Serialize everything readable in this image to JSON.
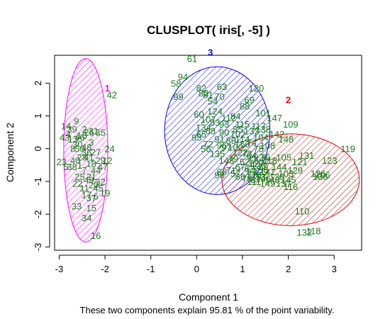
{
  "chart_data": {
    "type": "scatter",
    "title": "CLUSPLOT( iris[, -5] )",
    "xlabel": "Component 1",
    "ylabel": "Component 2",
    "subtitle": "These two components explain 95.81 % of the point variability.",
    "xlim": [
      -3.1,
      3.6
    ],
    "ylim": [
      -3.1,
      2.85
    ],
    "xticks": [
      -3,
      -2,
      -1,
      0,
      1,
      2,
      3
    ],
    "yticks": [
      -3,
      -2,
      -1,
      0,
      1,
      2
    ],
    "point_color": "#1a7a1a",
    "clusters": [
      {
        "label": "1",
        "color": "#ff00ff",
        "center": [
          -2.42,
          -0.05
        ],
        "semi_axes": [
          0.48,
          2.8
        ],
        "label_pos": [
          -1.95,
          1.85
        ],
        "points": [
          {
            "label": "42",
            "x": -1.85,
            "y": 1.65
          },
          {
            "label": "14",
            "x": -2.85,
            "y": 0.7
          },
          {
            "label": "9",
            "x": -2.62,
            "y": 0.85
          },
          {
            "label": "39",
            "x": -2.72,
            "y": 0.6
          },
          {
            "label": "43",
            "x": -2.88,
            "y": 0.35
          },
          {
            "label": "13",
            "x": -2.7,
            "y": 0.3
          },
          {
            "label": "46",
            "x": -2.55,
            "y": 0.35
          },
          {
            "label": "26",
            "x": -2.35,
            "y": 0.5
          },
          {
            "label": "2",
            "x": -2.45,
            "y": 0.6
          },
          {
            "label": "4",
            "x": -2.8,
            "y": 0.45
          },
          {
            "label": "31",
            "x": -2.25,
            "y": 0.55
          },
          {
            "label": "35",
            "x": -2.1,
            "y": 0.5
          },
          {
            "label": "10",
            "x": -2.5,
            "y": 0.4
          },
          {
            "label": "30",
            "x": -2.6,
            "y": 0.15
          },
          {
            "label": "3",
            "x": -2.3,
            "y": 0.2
          },
          {
            "label": "48",
            "x": -2.4,
            "y": 0.05
          },
          {
            "label": "50",
            "x": -2.55,
            "y": 0.0
          },
          {
            "label": "8",
            "x": -2.7,
            "y": 0.0
          },
          {
            "label": "36",
            "x": -2.4,
            "y": -0.1
          },
          {
            "label": "24",
            "x": -1.9,
            "y": 0.0
          },
          {
            "label": "27",
            "x": -2.2,
            "y": -0.1
          },
          {
            "label": "28",
            "x": -2.5,
            "y": -0.25
          },
          {
            "label": "40",
            "x": -2.65,
            "y": -0.35
          },
          {
            "label": "41",
            "x": -2.35,
            "y": -0.25
          },
          {
            "label": "1",
            "x": -2.55,
            "y": -0.5
          },
          {
            "label": "18",
            "x": -2.3,
            "y": -0.45
          },
          {
            "label": "29",
            "x": -2.1,
            "y": -0.35
          },
          {
            "label": "12",
            "x": -1.95,
            "y": -0.35
          },
          {
            "label": "23",
            "x": -2.95,
            "y": -0.4
          },
          {
            "label": "38",
            "x": -2.72,
            "y": -0.55
          },
          {
            "label": "5",
            "x": -2.85,
            "y": -0.55
          },
          {
            "label": "7",
            "x": -2.45,
            "y": -0.65
          },
          {
            "label": "44",
            "x": -2.2,
            "y": -0.65
          },
          {
            "label": "21",
            "x": -2.3,
            "y": -0.85
          },
          {
            "label": "22",
            "x": -2.6,
            "y": -1.05
          },
          {
            "label": "49",
            "x": -2.35,
            "y": -0.95
          },
          {
            "label": "11",
            "x": -2.45,
            "y": -1.2
          },
          {
            "label": "20",
            "x": -2.25,
            "y": -1.1
          },
          {
            "label": "45",
            "x": -2.15,
            "y": -1.2
          },
          {
            "label": "47",
            "x": -2.05,
            "y": -0.55
          },
          {
            "label": "17",
            "x": -2.4,
            "y": -1.4
          },
          {
            "label": "19",
            "x": -2.0,
            "y": -1.35
          },
          {
            "label": "37",
            "x": -2.3,
            "y": -1.5
          },
          {
            "label": "33",
            "x": -2.62,
            "y": -1.75
          },
          {
            "label": "15",
            "x": -2.3,
            "y": -1.8
          },
          {
            "label": "6",
            "x": -2.2,
            "y": -1.45
          },
          {
            "label": "32",
            "x": -2.1,
            "y": -1.0
          },
          {
            "label": "25",
            "x": -2.55,
            "y": -0.85
          },
          {
            "label": "34",
            "x": -2.4,
            "y": -2.1
          },
          {
            "label": "16",
            "x": -2.2,
            "y": -2.65
          }
        ]
      },
      {
        "label": "2",
        "color": "#dd0000",
        "center": [
          2.05,
          -0.95
        ],
        "semi_axes": [
          1.5,
          1.4
        ],
        "label_pos": [
          2.0,
          1.5
        ],
        "points": [
          {
            "label": "101",
            "x": 1.45,
            "y": 1.1
          },
          {
            "label": "147",
            "x": 1.7,
            "y": 0.95
          },
          {
            "label": "109",
            "x": 2.05,
            "y": 0.75
          },
          {
            "label": "117",
            "x": 1.35,
            "y": 0.7
          },
          {
            "label": "142",
            "x": 1.75,
            "y": 0.45
          },
          {
            "label": "148",
            "x": 1.95,
            "y": 0.3
          },
          {
            "label": "119",
            "x": 3.3,
            "y": 0.0
          },
          {
            "label": "131",
            "x": 2.4,
            "y": -0.2
          },
          {
            "label": "123",
            "x": 2.9,
            "y": -0.35
          },
          {
            "label": "105",
            "x": 1.9,
            "y": -0.25
          },
          {
            "label": "113",
            "x": 1.6,
            "y": -0.35
          },
          {
            "label": "121",
            "x": 2.25,
            "y": -0.4
          },
          {
            "label": "125",
            "x": 1.35,
            "y": -0.5
          },
          {
            "label": "144",
            "x": 1.8,
            "y": -0.55
          },
          {
            "label": "141",
            "x": 1.55,
            "y": -0.7
          },
          {
            "label": "129",
            "x": 2.15,
            "y": -0.65
          },
          {
            "label": "103",
            "x": 1.95,
            "y": -0.75
          },
          {
            "label": "130",
            "x": 1.75,
            "y": -0.85
          },
          {
            "label": "140",
            "x": 1.65,
            "y": -0.95
          },
          {
            "label": "145",
            "x": 2.0,
            "y": -0.95
          },
          {
            "label": "146",
            "x": 1.45,
            "y": -0.9
          },
          {
            "label": "126",
            "x": 2.65,
            "y": -0.75
          },
          {
            "label": "106",
            "x": 2.75,
            "y": -0.8
          },
          {
            "label": "136",
            "x": 2.7,
            "y": -0.85
          },
          {
            "label": "137",
            "x": 1.9,
            "y": -1.05
          },
          {
            "label": "149",
            "x": 1.55,
            "y": -1.05
          },
          {
            "label": "111",
            "x": 1.25,
            "y": -1.0
          },
          {
            "label": "116",
            "x": 2.05,
            "y": -1.15
          },
          {
            "label": "110",
            "x": 2.3,
            "y": -1.9
          },
          {
            "label": "132",
            "x": 2.35,
            "y": -2.55
          },
          {
            "label": "118",
            "x": 2.55,
            "y": -2.5
          }
        ]
      },
      {
        "label": "3",
        "color": "#0000ee",
        "center": [
          0.45,
          0.55
        ],
        "semi_axes": [
          1.15,
          1.95
        ],
        "label_pos": [
          0.3,
          2.95
        ],
        "points": [
          {
            "label": "61",
            "x": -0.1,
            "y": 2.75
          },
          {
            "label": "94",
            "x": -0.3,
            "y": 2.2
          },
          {
            "label": "58",
            "x": -0.45,
            "y": 2.0
          },
          {
            "label": "99",
            "x": -0.4,
            "y": 1.6
          },
          {
            "label": "82",
            "x": 0.1,
            "y": 1.85
          },
          {
            "label": "63",
            "x": 0.55,
            "y": 1.9
          },
          {
            "label": "120",
            "x": 1.3,
            "y": 1.85
          },
          {
            "label": "80",
            "x": 0.15,
            "y": 1.7
          },
          {
            "label": "81",
            "x": 0.25,
            "y": 1.65
          },
          {
            "label": "70",
            "x": 0.5,
            "y": 1.6
          },
          {
            "label": "54",
            "x": 0.35,
            "y": 1.45
          },
          {
            "label": "69",
            "x": 1.15,
            "y": 1.5
          },
          {
            "label": "88",
            "x": 1.05,
            "y": 1.3
          },
          {
            "label": "60",
            "x": 0.05,
            "y": 1.05
          },
          {
            "label": "107",
            "x": 0.25,
            "y": 0.9
          },
          {
            "label": "84",
            "x": 0.85,
            "y": 1.0
          },
          {
            "label": "83",
            "x": 0.4,
            "y": 0.8
          },
          {
            "label": "93",
            "x": 0.6,
            "y": 0.75
          },
          {
            "label": "68",
            "x": 0.3,
            "y": 0.55
          },
          {
            "label": "85",
            "x": 0.9,
            "y": 0.6
          },
          {
            "label": "65",
            "x": 0.1,
            "y": 0.45
          },
          {
            "label": "95",
            "x": 0.0,
            "y": 0.35
          },
          {
            "label": "91",
            "x": 0.5,
            "y": 0.3
          },
          {
            "label": "89",
            "x": 0.75,
            "y": 0.25
          },
          {
            "label": "114",
            "x": 1.0,
            "y": 0.3
          },
          {
            "label": "72",
            "x": 0.25,
            "y": 0.15
          },
          {
            "label": "96",
            "x": 0.55,
            "y": 0.1
          },
          {
            "label": "97",
            "x": 0.65,
            "y": 0.05
          },
          {
            "label": "56",
            "x": 0.2,
            "y": 0.0
          },
          {
            "label": "100",
            "x": 0.85,
            "y": 0.05
          },
          {
            "label": "74",
            "x": 1.2,
            "y": 0.2
          },
          {
            "label": "122",
            "x": 0.95,
            "y": -0.1
          },
          {
            "label": "64",
            "x": 1.2,
            "y": -0.2
          },
          {
            "label": "79",
            "x": 0.8,
            "y": -0.3
          },
          {
            "label": "92",
            "x": 1.35,
            "y": -0.25
          },
          {
            "label": "67",
            "x": 0.95,
            "y": -0.55
          },
          {
            "label": "62",
            "x": 1.15,
            "y": -0.6
          },
          {
            "label": "127",
            "x": 1.3,
            "y": -0.45
          },
          {
            "label": "71",
            "x": 0.75,
            "y": -0.65
          },
          {
            "label": "86",
            "x": 0.55,
            "y": -0.7
          },
          {
            "label": "57",
            "x": 0.85,
            "y": -0.75
          },
          {
            "label": "139",
            "x": 1.4,
            "y": -0.7
          },
          {
            "label": "128",
            "x": 1.25,
            "y": -0.8
          },
          {
            "label": "98",
            "x": 0.5,
            "y": -0.8
          },
          {
            "label": "66",
            "x": 0.95,
            "y": -0.85
          },
          {
            "label": "78",
            "x": 1.1,
            "y": -0.9
          },
          {
            "label": "87",
            "x": 1.3,
            "y": -0.95
          },
          {
            "label": "53",
            "x": 1.4,
            "y": -0.85
          },
          {
            "label": "51",
            "x": 1.2,
            "y": -0.7
          },
          {
            "label": "52",
            "x": 1.05,
            "y": -0.4
          },
          {
            "label": "55",
            "x": 1.25,
            "y": -0.35
          },
          {
            "label": "59",
            "x": 1.45,
            "y": -0.55
          },
          {
            "label": "73",
            "x": 1.1,
            "y": -0.15
          },
          {
            "label": "75",
            "x": 1.35,
            "y": 0.0
          },
          {
            "label": "76",
            "x": 1.5,
            "y": -0.25
          },
          {
            "label": "77",
            "x": 1.6,
            "y": -0.4
          },
          {
            "label": "90",
            "x": 0.6,
            "y": 0.5
          },
          {
            "label": "102",
            "x": 0.9,
            "y": 0.45
          },
          {
            "label": "104",
            "x": 1.4,
            "y": 0.35
          },
          {
            "label": "108",
            "x": 1.55,
            "y": 0.1
          },
          {
            "label": "112",
            "x": 0.7,
            "y": 0.95
          },
          {
            "label": "115",
            "x": 1.0,
            "y": 0.75
          },
          {
            "label": "124",
            "x": 0.4,
            "y": 1.15
          },
          {
            "label": "133",
            "x": 1.2,
            "y": 0.55
          },
          {
            "label": "134",
            "x": 0.15,
            "y": 0.65
          },
          {
            "label": "135",
            "x": 0.45,
            "y": -0.15
          },
          {
            "label": "138",
            "x": 1.45,
            "y": 0.6
          },
          {
            "label": "143",
            "x": 0.65,
            "y": -0.35
          },
          {
            "label": "150",
            "x": 1.0,
            "y": 0.15
          }
        ]
      }
    ]
  }
}
